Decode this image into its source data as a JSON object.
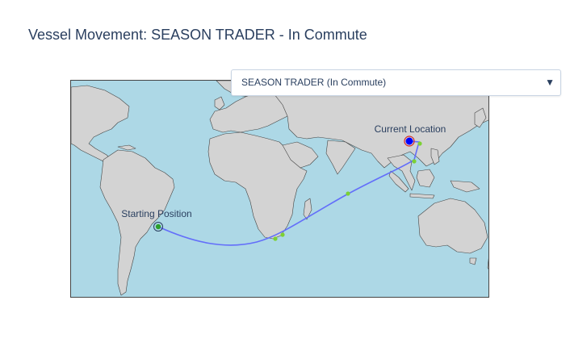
{
  "title": "Vessel Movement: SEASON TRADER - In Commute",
  "dropdown": {
    "selected": "SEASON TRADER (In Commute)",
    "arrow_icon": "triangle-down-icon"
  },
  "map": {
    "ocean_color": "#add8e6",
    "land_color": "#d3d3d3",
    "route_color": "#636efa",
    "waypoint_color": "#7cd134",
    "start_label": "Starting Position",
    "current_label": "Current Location",
    "current_marker_color": "#0000ff"
  }
}
